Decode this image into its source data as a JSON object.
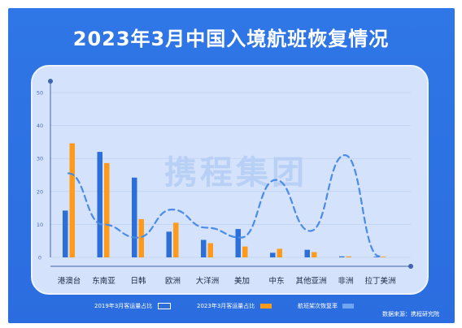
{
  "title": "2023年3月中国入境航班恢复情况",
  "watermark": "携程集团",
  "source": "数据来源：携程研究院",
  "colors": {
    "background": "#2f76e6",
    "panel": "#d4e2fb",
    "series_2019": "#2d6fd8",
    "series_2023": "#ff9a1a",
    "recovery_line": "#4a8ce8",
    "axis": "#4a6fb0"
  },
  "chart_data": {
    "type": "bar",
    "categories": [
      "港澳台",
      "东南亚",
      "日韩",
      "欧洲",
      "大洋洲",
      "美加",
      "中东",
      "其他亚洲",
      "非洲",
      "拉丁美洲"
    ],
    "ylim": [
      0,
      50
    ],
    "yticks": [
      0,
      10,
      20,
      30,
      40,
      50
    ],
    "series": [
      {
        "name": "2019年3月客运量占比",
        "type": "bar",
        "values": [
          14.2,
          32.0,
          24.2,
          7.8,
          5.3,
          8.6,
          1.4,
          2.3,
          0.3,
          0.2
        ]
      },
      {
        "name": "2023年3月客运量占比",
        "type": "bar",
        "values": [
          34.6,
          28.6,
          11.6,
          10.5,
          4.3,
          3.3,
          2.6,
          1.6,
          0.3,
          0.2
        ]
      },
      {
        "name": "航班架次恢复率",
        "type": "line",
        "style": "dashed",
        "values": [
          25.5,
          10.0,
          6.0,
          14.5,
          9.0,
          6.0,
          23.5,
          8.0,
          31.0,
          0.3
        ]
      }
    ],
    "legend_position": "bottom",
    "grid": true
  }
}
